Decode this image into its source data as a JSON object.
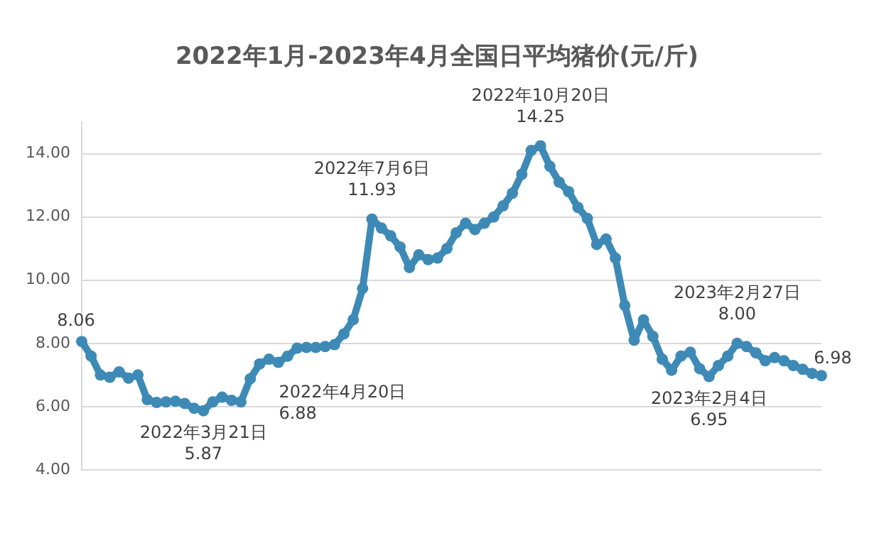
{
  "chart_data": {
    "type": "line",
    "title": "2022年1月-2023年4月全国日平均猪价(元/斤)",
    "categories": [
      null,
      null,
      null,
      null,
      null,
      null,
      null,
      null,
      null,
      null,
      null,
      null,
      null,
      null,
      null,
      null,
      null,
      null,
      null,
      null,
      null,
      null,
      null,
      null,
      null,
      null,
      null,
      null,
      null,
      null,
      null,
      null,
      null,
      null,
      null,
      null,
      null,
      null,
      null,
      null,
      null,
      null,
      null,
      null,
      null,
      null,
      null,
      null,
      null,
      null,
      null,
      null,
      null,
      null,
      null,
      null,
      null,
      null,
      null,
      null,
      null,
      null,
      null,
      null,
      null,
      null,
      null,
      null,
      null,
      null,
      null,
      null,
      null,
      null,
      null,
      null,
      null,
      null,
      null,
      null
    ],
    "series": [
      {
        "color": "#3e8ab6",
        "values": [
          8.06,
          7.6,
          7.0,
          6.93,
          7.1,
          6.9,
          7.0,
          6.22,
          6.13,
          6.15,
          6.17,
          6.1,
          5.95,
          5.87,
          6.15,
          6.3,
          6.2,
          6.15,
          6.88,
          7.35,
          7.5,
          7.4,
          7.6,
          7.85,
          7.87,
          7.87,
          7.9,
          7.96,
          8.3,
          8.75,
          9.74,
          11.93,
          11.65,
          11.4,
          11.05,
          10.4,
          10.8,
          10.65,
          10.7,
          11.0,
          11.5,
          11.8,
          11.6,
          11.8,
          12.0,
          12.35,
          12.75,
          13.35,
          14.1,
          14.25,
          13.6,
          13.1,
          12.8,
          12.3,
          11.95,
          11.13,
          11.3,
          10.7,
          9.2,
          8.1,
          8.74,
          8.22,
          7.5,
          7.15,
          7.6,
          7.72,
          7.2,
          6.95,
          7.3,
          7.6,
          8.0,
          7.9,
          7.7,
          7.45,
          7.55,
          7.45,
          7.3,
          7.18,
          7.05,
          6.98
        ]
      }
    ],
    "ylim": [
      4,
      15
    ],
    "yticks": [
      {
        "value": 4,
        "label": "4.00"
      },
      {
        "value": 6,
        "label": "6.00"
      },
      {
        "value": 8,
        "label": "8.00"
      },
      {
        "value": 10,
        "label": "10.00"
      },
      {
        "value": 12,
        "label": "12.00"
      },
      {
        "value": 14,
        "label": "14.00"
      }
    ],
    "tick_labels": "y",
    "grid": "y",
    "legend": false,
    "marker": "circle",
    "line_style": "solid",
    "annotations": [
      {
        "text": "8.06",
        "y": 8.06
      },
      {
        "text": "2022年3月21日\n5.87",
        "y": 5.87
      },
      "2022年4月20日\n6.88",
      {
        "text": "2022年7月6日\n11.93",
        "y": 11.93
      },
      {
        "text": "2022年10月20日\n14.25",
        "y": 14.25
      },
      {
        "text": "2023年2月4日\n6.95",
        "y": 6.95
      },
      {
        "text": "2023年2月27日\n8.00",
        "y": 8.0
      },
      {
        "text": "6.98",
        "y": 6.98
      }
    ]
  }
}
